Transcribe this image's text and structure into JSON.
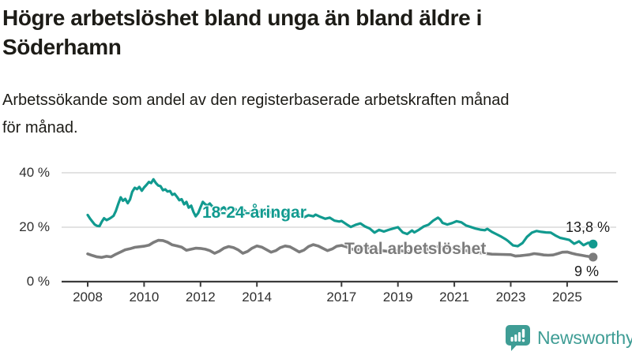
{
  "header": {
    "title_lines": [
      "Högre arbetslöshet bland unga än bland äldre i",
      "Söderhamn"
    ],
    "subtitle_lines": [
      "Arbetssökande som andel av den registerbaserade arbetskraften månad",
      "för månad."
    ]
  },
  "chart": {
    "series_labels": {
      "youth": "18-24-åringar",
      "total": "Total arbetslöshet"
    },
    "end_labels": {
      "youth": "13,8 %",
      "total": "9 %"
    },
    "colors": {
      "youth": "#119a8f",
      "total": "#7c7c7c",
      "grid": "#d9d9d9",
      "axis": "#3b3b3b",
      "tick_text": "#2f2f2f",
      "value_text": "#1a1a1a"
    }
  },
  "chart_data": {
    "type": "line",
    "title": "Högre arbetslöshet bland unga än bland äldre i Söderhamn",
    "subtitle": "Arbetssökande som andel av den registerbaserade arbetskraften månad för månad.",
    "xlabel": "",
    "ylabel": "",
    "ylim": [
      0,
      43
    ],
    "x_visible_range": [
      2007.1,
      2026.9
    ],
    "grid": "horizontal",
    "legend_position": "inline-labels",
    "y_ticks": [
      {
        "label": "40 %",
        "value": 40
      },
      {
        "label": "20 %",
        "value": 20
      },
      {
        "label": "0 %",
        "value": 0
      }
    ],
    "x_ticks": [
      {
        "label": "2008",
        "year": 2008
      },
      {
        "label": "2010",
        "year": 2010
      },
      {
        "label": "2012",
        "year": 2012
      },
      {
        "label": "2014",
        "year": 2014
      },
      {
        "label": "2017",
        "year": 2017
      },
      {
        "label": "2019",
        "year": 2019
      },
      {
        "label": "2021",
        "year": 2021
      },
      {
        "label": "2023",
        "year": 2023
      },
      {
        "label": "2025",
        "year": 2025
      }
    ],
    "series": [
      {
        "id": "youth",
        "name": "18-24-åringar",
        "color": "#119a8f",
        "end_label": "13,8 %",
        "end_value": 13.8,
        "points": [
          [
            2008.0,
            24.5
          ],
          [
            2008.08,
            23.2
          ],
          [
            2008.17,
            22.0
          ],
          [
            2008.25,
            21.0
          ],
          [
            2008.33,
            20.5
          ],
          [
            2008.42,
            20.4
          ],
          [
            2008.5,
            22.0
          ],
          [
            2008.58,
            23.3
          ],
          [
            2008.67,
            22.6
          ],
          [
            2008.75,
            23.0
          ],
          [
            2008.83,
            23.5
          ],
          [
            2008.92,
            24.2
          ],
          [
            2009.0,
            26.0
          ],
          [
            2009.08,
            28.5
          ],
          [
            2009.17,
            31.0
          ],
          [
            2009.25,
            29.7
          ],
          [
            2009.33,
            30.4
          ],
          [
            2009.42,
            28.8
          ],
          [
            2009.5,
            30.2
          ],
          [
            2009.58,
            33.0
          ],
          [
            2009.67,
            34.5
          ],
          [
            2009.75,
            34.0
          ],
          [
            2009.83,
            34.8
          ],
          [
            2009.92,
            33.4
          ],
          [
            2010.0,
            34.6
          ],
          [
            2010.08,
            35.5
          ],
          [
            2010.17,
            36.6
          ],
          [
            2010.25,
            36.2
          ],
          [
            2010.33,
            37.6
          ],
          [
            2010.42,
            36.2
          ],
          [
            2010.5,
            35.3
          ],
          [
            2010.58,
            35.1
          ],
          [
            2010.67,
            33.6
          ],
          [
            2010.75,
            33.9
          ],
          [
            2010.83,
            33.1
          ],
          [
            2010.92,
            33.3
          ],
          [
            2011.0,
            31.9
          ],
          [
            2011.08,
            32.3
          ],
          [
            2011.17,
            31.1
          ],
          [
            2011.25,
            29.9
          ],
          [
            2011.33,
            30.3
          ],
          [
            2011.42,
            28.4
          ],
          [
            2011.5,
            29.3
          ],
          [
            2011.58,
            27.2
          ],
          [
            2011.67,
            27.9
          ],
          [
            2011.75,
            25.6
          ],
          [
            2011.83,
            24.0
          ],
          [
            2011.92,
            25.2
          ],
          [
            2012.0,
            27.3
          ],
          [
            2012.08,
            29.3
          ],
          [
            2012.17,
            28.4
          ],
          [
            2012.25,
            28.0
          ],
          [
            2012.33,
            28.7
          ],
          [
            2012.42,
            27.6
          ],
          [
            2012.5,
            27.1
          ],
          [
            2012.58,
            26.6
          ],
          [
            2012.67,
            26.0
          ],
          [
            2012.75,
            26.8
          ],
          [
            2012.83,
            27.3
          ],
          [
            2012.92,
            26.4
          ],
          [
            2013.0,
            26.8
          ],
          [
            2013.17,
            27.2
          ],
          [
            2013.33,
            25.8
          ],
          [
            2013.5,
            26.6
          ],
          [
            2013.67,
            25.1
          ],
          [
            2013.83,
            25.9
          ],
          [
            2014.0,
            25.4
          ],
          [
            2014.17,
            26.1
          ],
          [
            2014.33,
            24.6
          ],
          [
            2014.5,
            25.6
          ],
          [
            2014.67,
            24.3
          ],
          [
            2014.83,
            25.1
          ],
          [
            2015.0,
            24.6
          ],
          [
            2015.17,
            25.3
          ],
          [
            2015.33,
            23.9
          ],
          [
            2015.5,
            24.9
          ],
          [
            2015.67,
            23.6
          ],
          [
            2015.83,
            24.4
          ],
          [
            2016.0,
            24.0
          ],
          [
            2016.08,
            24.6
          ],
          [
            2016.25,
            23.8
          ],
          [
            2016.42,
            23.1
          ],
          [
            2016.58,
            23.5
          ],
          [
            2016.75,
            22.4
          ],
          [
            2016.92,
            22.1
          ],
          [
            2017.0,
            22.3
          ],
          [
            2017.17,
            21.1
          ],
          [
            2017.33,
            20.1
          ],
          [
            2017.5,
            20.9
          ],
          [
            2017.67,
            21.4
          ],
          [
            2017.83,
            20.3
          ],
          [
            2018.0,
            19.5
          ],
          [
            2018.17,
            18.0
          ],
          [
            2018.33,
            19.0
          ],
          [
            2018.5,
            18.4
          ],
          [
            2018.67,
            19.0
          ],
          [
            2018.83,
            19.5
          ],
          [
            2019.0,
            20.0
          ],
          [
            2019.17,
            18.1
          ],
          [
            2019.33,
            17.5
          ],
          [
            2019.5,
            18.8
          ],
          [
            2019.58,
            18.1
          ],
          [
            2019.75,
            19.1
          ],
          [
            2019.92,
            20.3
          ],
          [
            2020.08,
            20.9
          ],
          [
            2020.25,
            22.4
          ],
          [
            2020.42,
            23.5
          ],
          [
            2020.5,
            22.8
          ],
          [
            2020.58,
            21.6
          ],
          [
            2020.75,
            21.0
          ],
          [
            2020.92,
            21.5
          ],
          [
            2021.08,
            22.2
          ],
          [
            2021.25,
            21.8
          ],
          [
            2021.42,
            20.6
          ],
          [
            2021.58,
            20.1
          ],
          [
            2021.75,
            19.5
          ],
          [
            2021.92,
            19.1
          ],
          [
            2022.08,
            18.9
          ],
          [
            2022.17,
            19.4
          ],
          [
            2022.33,
            18.3
          ],
          [
            2022.5,
            17.4
          ],
          [
            2022.67,
            16.5
          ],
          [
            2022.83,
            15.5
          ],
          [
            2022.92,
            14.8
          ],
          [
            2023.08,
            13.3
          ],
          [
            2023.25,
            13.0
          ],
          [
            2023.42,
            14.2
          ],
          [
            2023.58,
            16.5
          ],
          [
            2023.75,
            18.0
          ],
          [
            2023.92,
            18.6
          ],
          [
            2024.08,
            18.3
          ],
          [
            2024.25,
            18.1
          ],
          [
            2024.42,
            18.0
          ],
          [
            2024.58,
            17.0
          ],
          [
            2024.75,
            16.1
          ],
          [
            2024.92,
            15.7
          ],
          [
            2025.08,
            15.3
          ],
          [
            2025.25,
            13.9
          ],
          [
            2025.42,
            14.8
          ],
          [
            2025.58,
            13.4
          ],
          [
            2025.75,
            14.3
          ],
          [
            2025.92,
            13.8
          ]
        ]
      },
      {
        "id": "total",
        "name": "Total arbetslöshet",
        "color": "#7c7c7c",
        "end_label": "9 %",
        "end_value": 9.0,
        "points": [
          [
            2008.0,
            10.2
          ],
          [
            2008.17,
            9.6
          ],
          [
            2008.33,
            9.1
          ],
          [
            2008.5,
            8.9
          ],
          [
            2008.67,
            9.3
          ],
          [
            2008.83,
            9.1
          ],
          [
            2009.0,
            10.1
          ],
          [
            2009.17,
            10.9
          ],
          [
            2009.33,
            11.7
          ],
          [
            2009.5,
            12.1
          ],
          [
            2009.67,
            12.6
          ],
          [
            2009.83,
            12.8
          ],
          [
            2010.0,
            13.0
          ],
          [
            2010.17,
            13.4
          ],
          [
            2010.33,
            14.4
          ],
          [
            2010.5,
            15.2
          ],
          [
            2010.67,
            15.1
          ],
          [
            2010.83,
            14.5
          ],
          [
            2011.0,
            13.5
          ],
          [
            2011.17,
            13.1
          ],
          [
            2011.33,
            12.7
          ],
          [
            2011.5,
            11.5
          ],
          [
            2011.67,
            11.9
          ],
          [
            2011.83,
            12.3
          ],
          [
            2012.0,
            12.2
          ],
          [
            2012.17,
            11.9
          ],
          [
            2012.33,
            11.4
          ],
          [
            2012.5,
            10.4
          ],
          [
            2012.67,
            11.2
          ],
          [
            2012.83,
            12.3
          ],
          [
            2013.0,
            12.9
          ],
          [
            2013.17,
            12.5
          ],
          [
            2013.33,
            11.7
          ],
          [
            2013.5,
            10.4
          ],
          [
            2013.67,
            11.1
          ],
          [
            2013.83,
            12.3
          ],
          [
            2014.0,
            13.1
          ],
          [
            2014.17,
            12.7
          ],
          [
            2014.33,
            11.8
          ],
          [
            2014.5,
            10.8
          ],
          [
            2014.67,
            11.4
          ],
          [
            2014.83,
            12.5
          ],
          [
            2015.0,
            13.1
          ],
          [
            2015.17,
            12.8
          ],
          [
            2015.33,
            11.9
          ],
          [
            2015.5,
            10.9
          ],
          [
            2015.67,
            11.6
          ],
          [
            2015.83,
            12.9
          ],
          [
            2016.0,
            13.6
          ],
          [
            2016.17,
            13.1
          ],
          [
            2016.33,
            12.3
          ],
          [
            2016.5,
            11.4
          ],
          [
            2016.67,
            12.0
          ],
          [
            2016.83,
            13.0
          ],
          [
            2017.0,
            13.3
          ],
          [
            2017.17,
            12.8
          ],
          [
            2017.33,
            12.1
          ],
          [
            2017.5,
            11.5
          ],
          [
            2017.67,
            11.9
          ],
          [
            2017.83,
            12.5
          ],
          [
            2018.0,
            12.3
          ],
          [
            2018.33,
            11.5
          ],
          [
            2018.67,
            11.1
          ],
          [
            2019.0,
            11.5
          ],
          [
            2019.33,
            11.0
          ],
          [
            2019.67,
            11.3
          ],
          [
            2020.0,
            11.7
          ],
          [
            2020.33,
            12.9
          ],
          [
            2020.67,
            12.5
          ],
          [
            2021.0,
            12.1
          ],
          [
            2021.33,
            11.5
          ],
          [
            2021.67,
            10.9
          ],
          [
            2022.0,
            10.5
          ],
          [
            2022.33,
            10.1
          ],
          [
            2022.67,
            10.0
          ],
          [
            2023.0,
            9.9
          ],
          [
            2023.17,
            9.4
          ],
          [
            2023.33,
            9.5
          ],
          [
            2023.5,
            9.7
          ],
          [
            2023.67,
            9.9
          ],
          [
            2023.83,
            10.3
          ],
          [
            2024.0,
            10.1
          ],
          [
            2024.17,
            9.8
          ],
          [
            2024.33,
            9.7
          ],
          [
            2024.5,
            9.8
          ],
          [
            2024.67,
            10.3
          ],
          [
            2024.83,
            10.8
          ],
          [
            2025.0,
            10.9
          ],
          [
            2025.17,
            10.4
          ],
          [
            2025.33,
            10.0
          ],
          [
            2025.5,
            9.7
          ],
          [
            2025.67,
            9.4
          ],
          [
            2025.92,
            9.0
          ]
        ]
      }
    ]
  },
  "footer": {
    "brand": "Newsworthy",
    "brand_color": "#3f9d95"
  }
}
